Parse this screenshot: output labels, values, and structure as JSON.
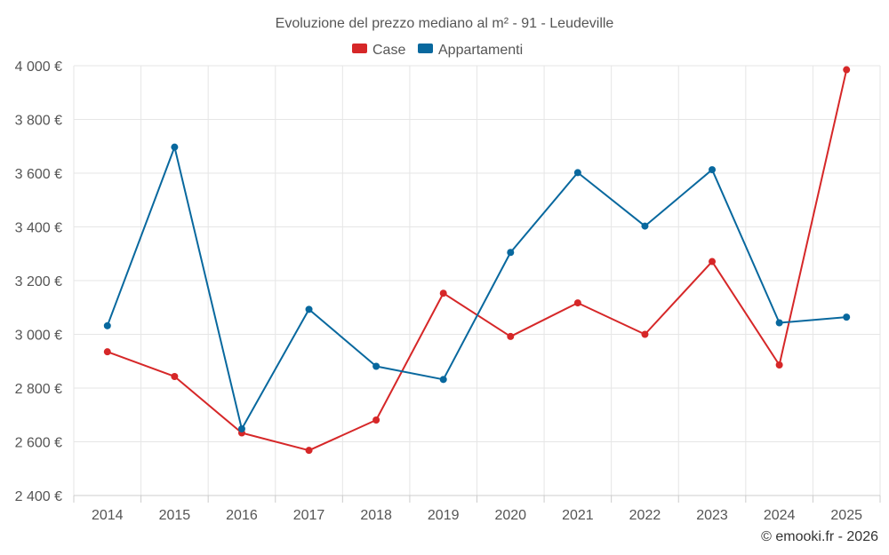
{
  "chart_data": {
    "type": "line",
    "title": "Evoluzione del prezzo mediano al m² - 91 - Leudeville",
    "categories": [
      "2014",
      "2015",
      "2016",
      "2017",
      "2018",
      "2019",
      "2020",
      "2021",
      "2022",
      "2023",
      "2024",
      "2025"
    ],
    "series": [
      {
        "name": "Case",
        "color": "#d62728",
        "values": [
          2935,
          2843,
          2633,
          2568,
          2681,
          3153,
          2992,
          3117,
          3000,
          3271,
          2886,
          3985
        ]
      },
      {
        "name": "Appartamenti",
        "color": "#08689e",
        "values": [
          3032,
          3697,
          2648,
          3093,
          2881,
          2832,
          3305,
          3602,
          3403,
          3613,
          3043,
          3064
        ]
      }
    ],
    "ylim": [
      2400,
      4000
    ],
    "yticks": [
      2400,
      2600,
      2800,
      3000,
      3200,
      3400,
      3600,
      3800,
      4000
    ],
    "ytick_labels": [
      "2 400 €",
      "2 600 €",
      "2 800 €",
      "3 000 €",
      "3 200 €",
      "3 400 €",
      "3 600 €",
      "3 800 €",
      "4 000 €"
    ],
    "xlabel": "",
    "ylabel": "",
    "grid": true,
    "legend_position": "top-center"
  },
  "credit": "© emooki.fr - 2026"
}
